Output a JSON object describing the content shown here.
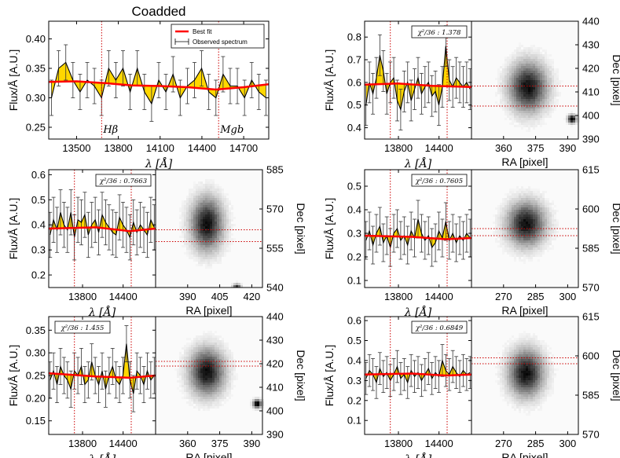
{
  "colors": {
    "fill": "#ffd700",
    "fit": "#ff0000",
    "marker": "#cc0000",
    "data": "#000000",
    "err": "#333333"
  },
  "chart_data": {
    "type": "line",
    "common": {
      "ylabel": "Flux/Å [A.U.]",
      "xlabel": "λ [Å]",
      "ra_label": "RA [pixel]",
      "dec_label": "Dec [pixel]",
      "hbeta_x": 13680,
      "mgb_x": 14520,
      "xlim": [
        13300,
        14880
      ]
    },
    "coadded": {
      "title": "Coadded",
      "legend": [
        "Best fit",
        "Observed spectrum"
      ],
      "xticks": [
        "13500",
        "13800",
        "14100",
        "14400",
        "14700"
      ],
      "yticks": [
        "0.25",
        "0.30",
        "0.35",
        "0.40"
      ],
      "ylim": [
        0.23,
        0.43
      ],
      "line_labels": [
        "Hβ",
        "Mgb"
      ],
      "fit": [
        [
          13300,
          0.327
        ],
        [
          13500,
          0.328
        ],
        [
          13700,
          0.325
        ],
        [
          13900,
          0.321
        ],
        [
          14100,
          0.32
        ],
        [
          14300,
          0.318
        ],
        [
          14500,
          0.314
        ],
        [
          14700,
          0.318
        ],
        [
          14880,
          0.323
        ]
      ],
      "flux": [
        0.3,
        0.35,
        0.36,
        0.33,
        0.31,
        0.33,
        0.32,
        0.3,
        0.35,
        0.33,
        0.35,
        0.31,
        0.35,
        0.31,
        0.29,
        0.33,
        0.31,
        0.34,
        0.3,
        0.32,
        0.33,
        0.35,
        0.31,
        0.3,
        0.34,
        0.32,
        0.32,
        0.3,
        0.33,
        0.31,
        0.3
      ],
      "err": 0.03
    },
    "panels": [
      {
        "id": "spec-2",
        "chi2": "χ²/36 : 1.378",
        "yticks": [
          "0.4",
          "0.5",
          "0.6",
          "0.7",
          "0.8"
        ],
        "ylim": [
          0.35,
          0.87
        ],
        "xticks": [
          "13800",
          "14400"
        ],
        "ra_ticks": [
          "360",
          "375",
          "390"
        ],
        "dec_ticks": [
          "440",
          "430",
          "420",
          "410",
          "400",
          "390"
        ],
        "fit": [
          [
            13300,
            0.59
          ],
          [
            13800,
            0.595
          ],
          [
            14300,
            0.585
          ],
          [
            14880,
            0.58
          ]
        ],
        "flux": [
          0.5,
          0.6,
          0.55,
          0.62,
          0.72,
          0.65,
          0.55,
          0.6,
          0.62,
          0.52,
          0.48,
          0.56,
          0.6,
          0.52,
          0.57,
          0.62,
          0.55,
          0.58,
          0.6,
          0.54,
          0.56,
          0.5,
          0.58,
          0.76,
          0.61,
          0.58,
          0.62,
          0.6,
          0.58,
          0.6,
          0.57
        ],
        "err": 0.09
      },
      {
        "id": "spec-3",
        "chi2": "χ²/36 : 0.7663",
        "yticks": [
          "0.2",
          "0.3",
          "0.4",
          "0.5",
          "0.6"
        ],
        "ylim": [
          0.15,
          0.62
        ],
        "xticks": [
          "13800",
          "14400"
        ],
        "ra_ticks": [
          "390",
          "405",
          "420"
        ],
        "dec_ticks": [
          "585",
          "570",
          "555",
          "540"
        ],
        "fit": [
          [
            13300,
            0.385
          ],
          [
            14000,
            0.39
          ],
          [
            14500,
            0.375
          ],
          [
            14880,
            0.385
          ]
        ],
        "flux": [
          0.36,
          0.42,
          0.38,
          0.45,
          0.4,
          0.38,
          0.45,
          0.35,
          0.42,
          0.41,
          0.44,
          0.36,
          0.4,
          0.42,
          0.37,
          0.44,
          0.41,
          0.39,
          0.37,
          0.36,
          0.43,
          0.4,
          0.38,
          0.35,
          0.41,
          0.37,
          0.4,
          0.38,
          0.36,
          0.42,
          0.39
        ],
        "err": 0.09
      },
      {
        "id": "spec-4",
        "chi2": "χ²/36 : 0.7605",
        "yticks": [
          "0.1",
          "0.2",
          "0.3",
          "0.4",
          "0.5"
        ],
        "ylim": [
          0.07,
          0.57
        ],
        "xticks": [
          "13800",
          "14400"
        ],
        "ra_ticks": [
          "270",
          "285",
          "300"
        ],
        "dec_ticks": [
          "615",
          "600",
          "585",
          "570"
        ],
        "fit": [
          [
            13300,
            0.29
          ],
          [
            14000,
            0.285
          ],
          [
            14500,
            0.275
          ],
          [
            14880,
            0.28
          ]
        ],
        "flux": [
          0.27,
          0.31,
          0.25,
          0.3,
          0.33,
          0.26,
          0.29,
          0.24,
          0.3,
          0.32,
          0.27,
          0.29,
          0.25,
          0.31,
          0.28,
          0.36,
          0.3,
          0.27,
          0.29,
          0.24,
          0.26,
          0.31,
          0.28,
          0.35,
          0.27,
          0.3,
          0.26,
          0.29,
          0.27,
          0.3,
          0.28
        ],
        "err": 0.08
      },
      {
        "id": "spec-5",
        "chi2": "χ²/36 : 1.455",
        "yticks": [
          "0.15",
          "0.20",
          "0.25",
          "0.30",
          "0.35"
        ],
        "ylim": [
          0.12,
          0.38
        ],
        "xticks": [
          "13800",
          "14400"
        ],
        "ra_ticks": [
          "360",
          "375",
          "390"
        ],
        "dec_ticks": [
          "440",
          "430",
          "420",
          "410",
          "400",
          "390"
        ],
        "fit": [
          [
            13300,
            0.255
          ],
          [
            14000,
            0.248
          ],
          [
            14500,
            0.245
          ],
          [
            14880,
            0.25
          ]
        ],
        "flux": [
          0.24,
          0.26,
          0.23,
          0.27,
          0.25,
          0.24,
          0.22,
          0.26,
          0.25,
          0.27,
          0.23,
          0.24,
          0.28,
          0.25,
          0.23,
          0.26,
          0.22,
          0.25,
          0.27,
          0.24,
          0.23,
          0.25,
          0.32,
          0.24,
          0.21,
          0.26,
          0.25,
          0.23,
          0.26,
          0.24,
          0.25
        ],
        "err": 0.04
      },
      {
        "id": "spec-6",
        "chi2": "χ²/36 : 0.6849",
        "yticks": [
          "0.1",
          "0.2",
          "0.3",
          "0.4",
          "0.5",
          "0.6"
        ],
        "ylim": [
          0.03,
          0.62
        ],
        "xticks": [
          "13800",
          "14400"
        ],
        "ra_ticks": [
          "270",
          "285",
          "300"
        ],
        "dec_ticks": [
          "615",
          "600",
          "585",
          "570"
        ],
        "fit": [
          [
            13300,
            0.33
          ],
          [
            14000,
            0.335
          ],
          [
            14500,
            0.325
          ],
          [
            14880,
            0.33
          ]
        ],
        "flux": [
          0.31,
          0.35,
          0.33,
          0.29,
          0.36,
          0.32,
          0.34,
          0.3,
          0.33,
          0.37,
          0.31,
          0.33,
          0.29,
          0.35,
          0.32,
          0.34,
          0.3,
          0.33,
          0.36,
          0.31,
          0.34,
          0.32,
          0.4,
          0.35,
          0.33,
          0.37,
          0.34,
          0.32,
          0.35,
          0.33,
          0.34
        ],
        "err": 0.08
      }
    ]
  }
}
